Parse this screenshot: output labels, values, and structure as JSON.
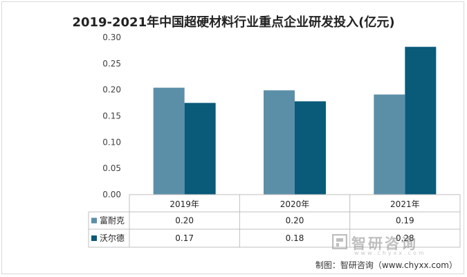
{
  "chart_data": {
    "type": "bar",
    "title": "2019-2021年中国超硬材料行业重点企业研发投入(亿元)",
    "categories": [
      "2019年",
      "2020年",
      "2021年"
    ],
    "series": [
      {
        "name": "富耐克",
        "values": [
          0.204,
          0.199,
          0.191
        ],
        "labels": [
          "0.20",
          "0.20",
          "0.19"
        ],
        "color": "#5b8fa8"
      },
      {
        "name": "沃尔德",
        "values": [
          0.175,
          0.178,
          0.282
        ],
        "labels": [
          "0.17",
          "0.18",
          "0.28"
        ],
        "color": "#0a5a7a"
      }
    ],
    "ylim": [
      0,
      0.3
    ],
    "yticks": [
      "0.00",
      "0.05",
      "0.10",
      "0.15",
      "0.20",
      "0.25",
      "0.30"
    ],
    "grid": false,
    "legend": "data-table"
  },
  "watermark": {
    "name": "智研咨询",
    "url": "www.chyxx.com"
  },
  "credit": "制图：智研咨询（www.chyxx.com）"
}
